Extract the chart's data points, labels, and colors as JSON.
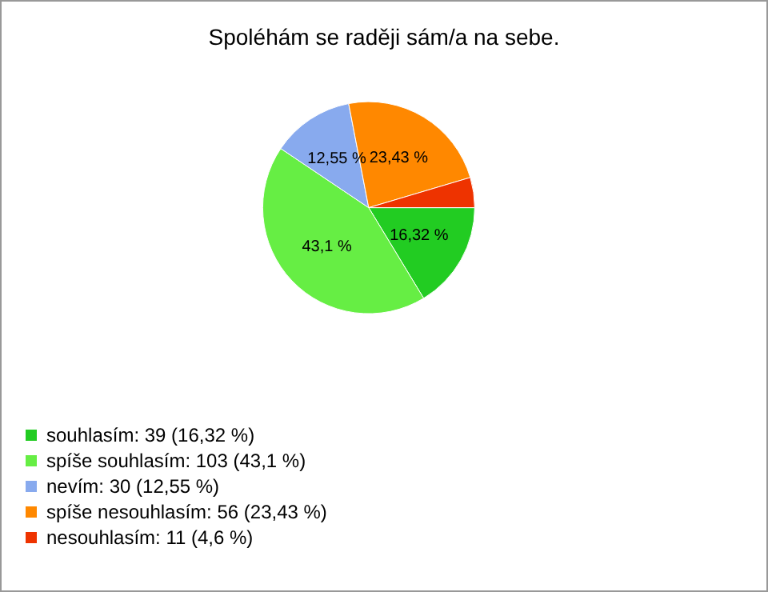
{
  "chart_data": {
    "type": "pie",
    "title": "Spoléhám se raději sám/a na sebe.",
    "categories": [
      "souhlasím: 39 (16,32 %)",
      "spíše souhlasím: 103 (43,1 %)",
      "nevím: 30 (12,55 %)",
      "spíše nesouhlasím: 56 (23,43 %)",
      "nesouhlasím: 11 (4,6 %)"
    ],
    "values": [
      16.32,
      43.1,
      12.55,
      23.43,
      4.6
    ],
    "value_labels": [
      "16,32 %",
      "43,1 %",
      "12,55 %",
      "23,43 %",
      null
    ],
    "colors": [
      "#22cc22",
      "#66ee44",
      "#88aaee",
      "#ff8800",
      "#ee3300"
    ],
    "legend": "bottom left"
  }
}
